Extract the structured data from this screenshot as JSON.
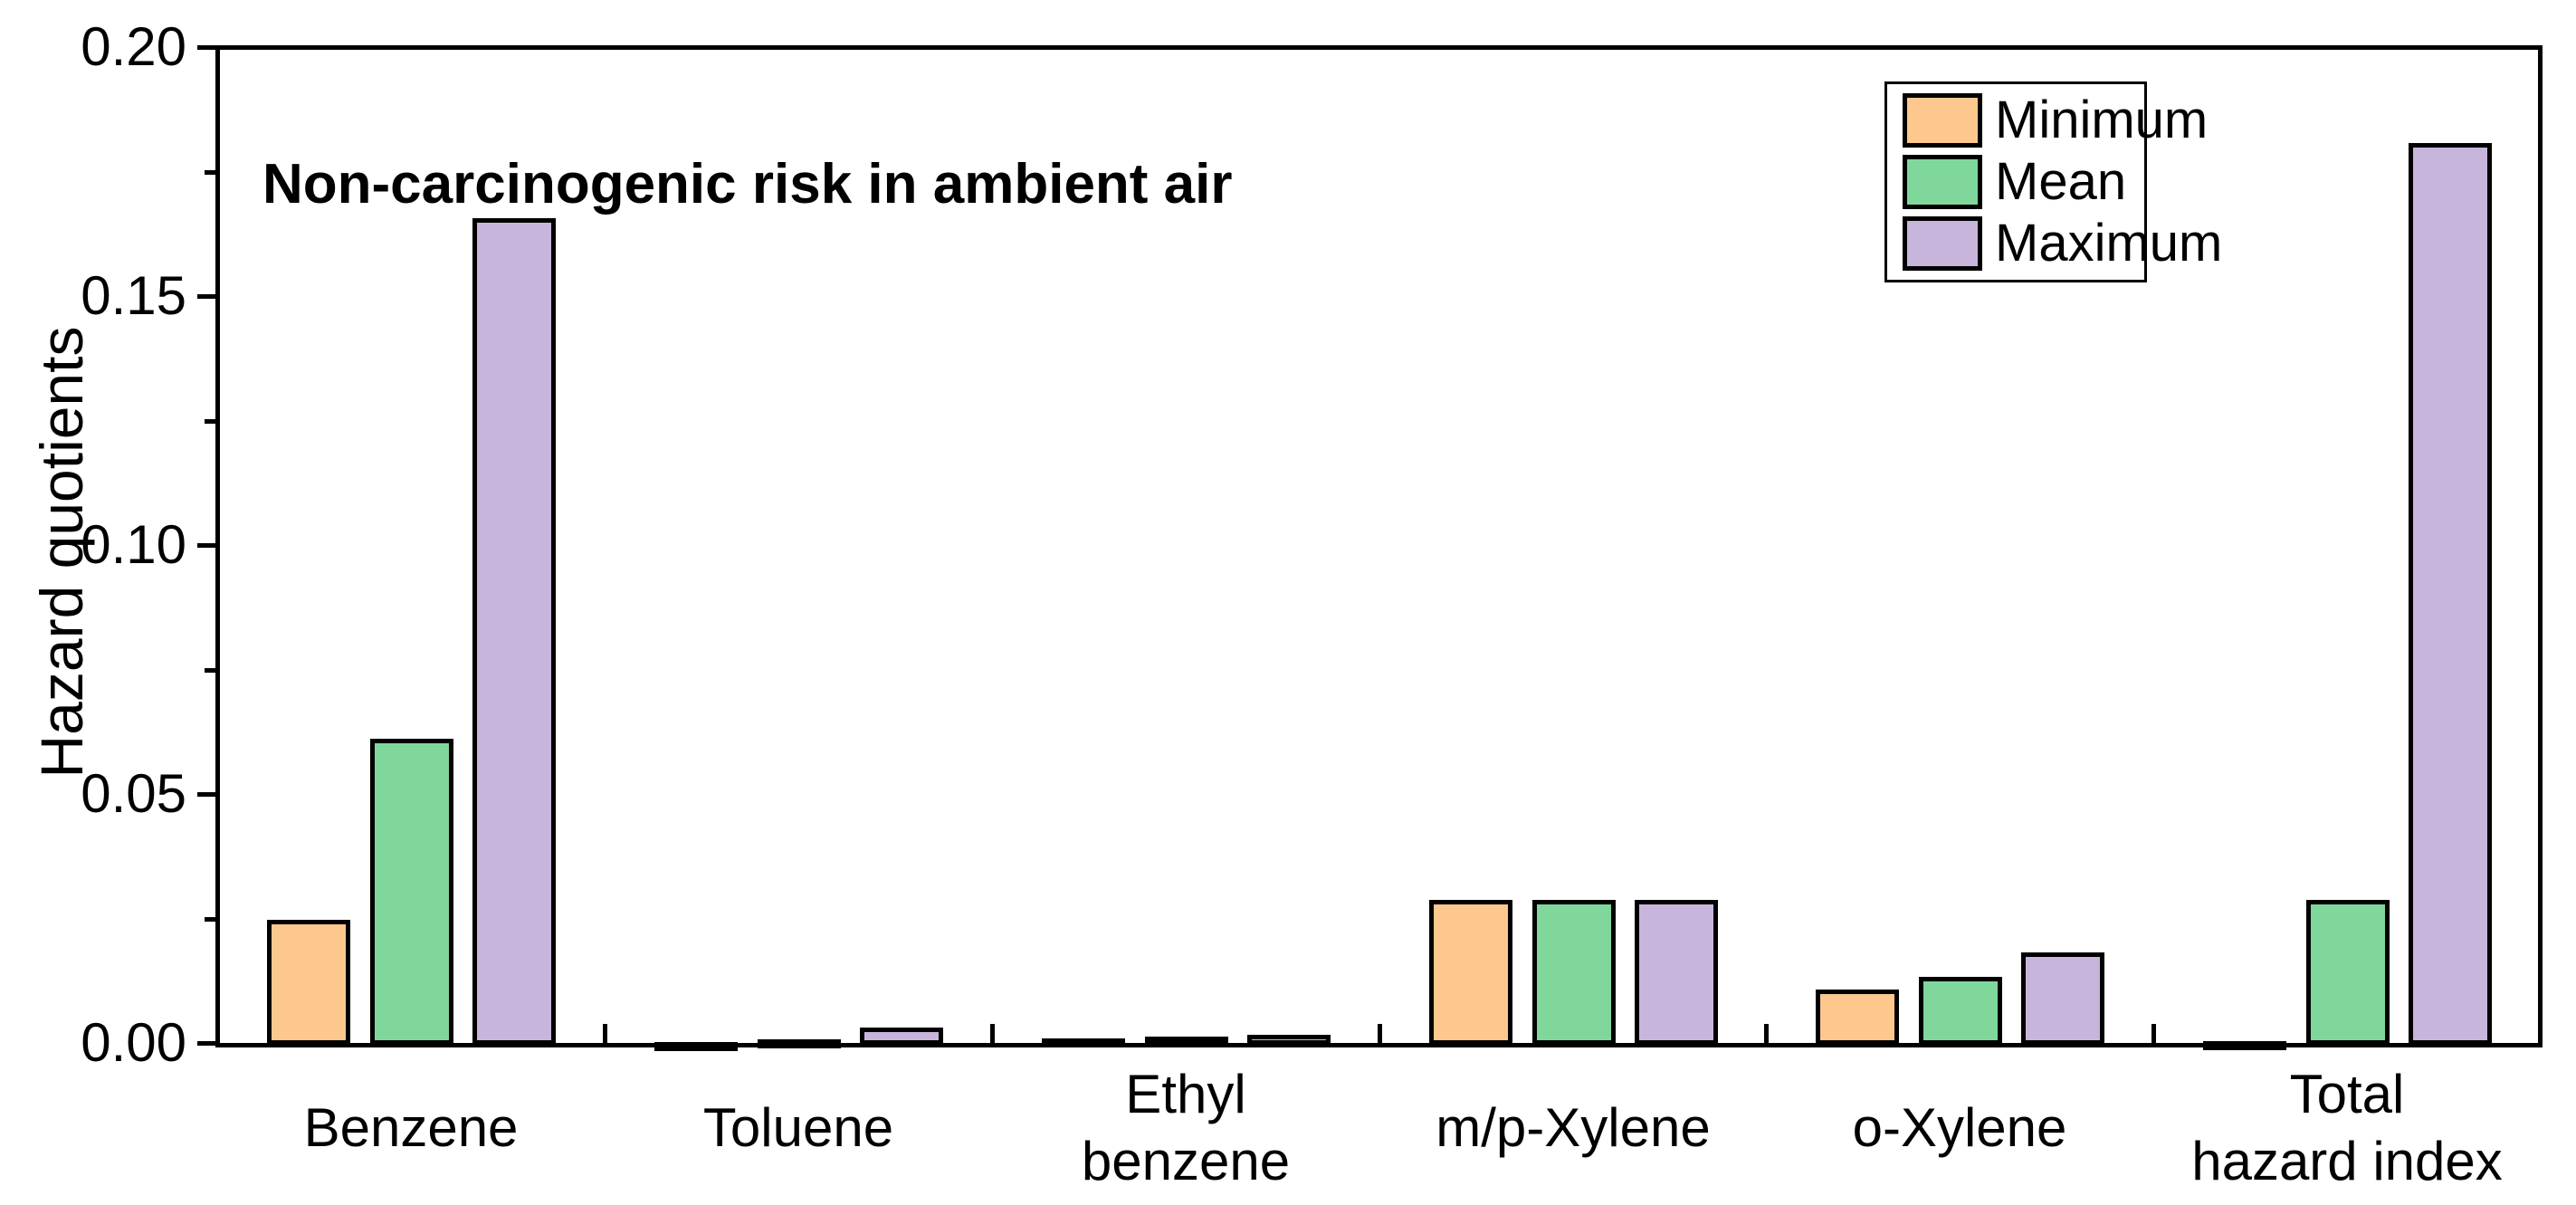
{
  "chart_data": {
    "type": "bar",
    "title": "Non-carcinogenic risk in ambient air",
    "ylabel": "Hazard quotients",
    "xlabel": "",
    "categories": [
      "Benzene",
      "Toluene",
      "Ethyl\nbenzene",
      "m/p-Xylene",
      "o-Xylene",
      "Total\nhazard index"
    ],
    "series": [
      {
        "name": "Minimum",
        "color": "#FDC88E",
        "values": [
          0.025,
          0.0005,
          0.0012,
          0.029,
          0.011,
          0.0007
        ]
      },
      {
        "name": "Mean",
        "color": "#7FD79C",
        "values": [
          0.0615,
          0.001,
          0.0016,
          0.029,
          0.0136,
          0.029
        ]
      },
      {
        "name": "Maximum",
        "color": "#C8B5DB",
        "values": [
          0.166,
          0.0035,
          0.002,
          0.029,
          0.0185,
          0.181
        ]
      }
    ],
    "ylim": [
      0,
      0.2
    ],
    "ytick_labels": [
      "0.00",
      "0.05",
      "0.10",
      "0.15",
      "0.20"
    ],
    "ytick_values": [
      0.0,
      0.05,
      0.1,
      0.15,
      0.2
    ],
    "yminor_values": [
      0.025,
      0.075,
      0.125,
      0.175
    ],
    "grid": "off",
    "legend_position": "top-right",
    "bar_edge_color": "#000000",
    "axis_color": "#000000"
  }
}
